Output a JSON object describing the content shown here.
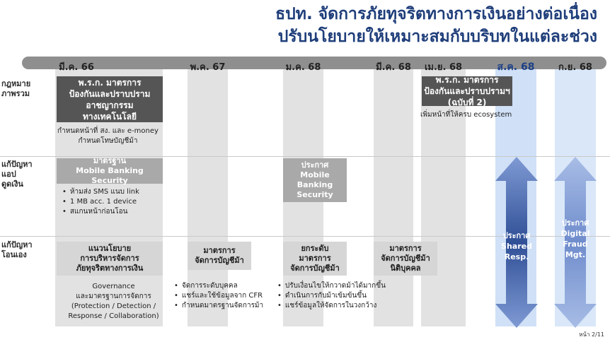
{
  "title": {
    "line1": "ธปท. จัดการภัยทุจริตทางการเงินอย่างต่อเนื่อง",
    "line2": "ปรับนโยบายให้เหมาะสมกับบริบทในแต่ละช่วง"
  },
  "timeline": {
    "months": [
      "มี.ค. 66",
      "พ.ค. 67",
      "ม.ค. 68",
      "มี.ค. 68",
      "เม.ย. 68",
      "ส.ค. 68",
      "ก.ย. 68"
    ]
  },
  "rows": {
    "law": "กฎหมาย\nภาพรวม",
    "app": "แก้ปัญหา\nแอป\nดูดเงิน",
    "mule": "แก้ปัญหา\nโอนเอง"
  },
  "boxes": {
    "decree_2566": "พ.ร.ก. มาตรการ\nป้องกันและปราบปราม\nอาชญากรรม\nทางเทคโนโลยี",
    "decree_2568": "พ.ร.ก. มาตรการ\nป้องกันและปราบปรามฯ\n(ฉบับที่ 2)",
    "mb_security": "มาตรฐาน\nMobile Banking Security",
    "mb_announce": "ประกาศ\nMobile\nBanking\nSecurity",
    "guideline": "แนวนโยบาย\nการบริหารจัดการ\nภัยทุจริตทางการเงิน",
    "account_measure": "มาตรการ\nจัดการบัญชีม้า",
    "upgrade_measure": "ยกระดับ\nมาตรการ\nจัดการบัญชีม้า",
    "juristic_measure": "มาตรการ\nจัดการบัญชีม้า\nนิติบุคคล"
  },
  "notes": {
    "decree_2566": "กำหนดหน้าที่ สง. และ e-money\nกำหนดโทษบัญชีม้า",
    "decree_2568": "เพิ่มหน้าที่ให้ครบ ecosystem",
    "guideline": "Governance\nและมาตรฐานการจัดการ\n(Protection / Detection /\nResponse / Collaboration)"
  },
  "bullets": {
    "mb_security": [
      "ห้ามส่ง SMS แนบ link",
      "1 MB acc. 1 device",
      "สแกนหน้าก่อนโอน"
    ],
    "account_measure": [
      "จัดการระดับบุคคล",
      "แชร์และใช้ข้อมูลจาก CFR",
      "กำหนดมาตรฐานจัดการม้า"
    ],
    "upgrade_measure": [
      "ปรับเงื่อนไขให้กวาดม้าได้มากขึ้น",
      "ดำเนินการกับม้าเข้มข้นขึ้น",
      "แชร์ข้อมูลให้จัดการในวงกว้าง"
    ]
  },
  "arrows": {
    "shared": "ประกาศ\nShared\nResp.",
    "digital": "ประกาศ\nDigital\nFraud\nMgt."
  },
  "page": "หน้า 2/11",
  "colors": {
    "title": "#1f3e7a",
    "dark_box": "#555555",
    "mid_box": "#a9a9a9",
    "highlight_column": "#cfe0f7",
    "arrow_dark": "#3d5fa8",
    "arrow_light": "#8fa8d6"
  }
}
